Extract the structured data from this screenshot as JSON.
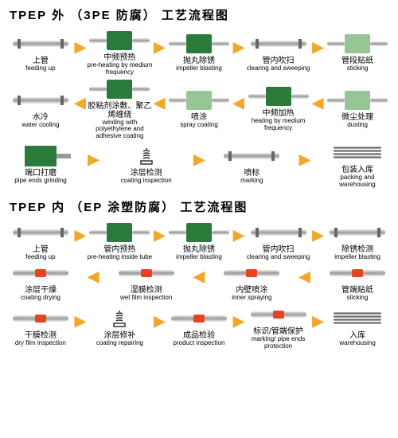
{
  "colors": {
    "arrow": "#f5a623",
    "machine_green": "#2a7a3a",
    "machine_light": "#6aad6a",
    "orange_band": "#e8431f",
    "pipe_grey": "#999"
  },
  "chart1": {
    "title": "TPEP 外 （3PE 防腐） 工艺流程图",
    "rows": [
      {
        "dir": "right",
        "steps": [
          {
            "zh": "上管",
            "en": "feeding up",
            "icon": "pipe"
          },
          {
            "zh": "中频预热",
            "en": "pre-heating by medium frequency",
            "icon": "machine"
          },
          {
            "zh": "抛丸除锈",
            "en": "impeller blasting",
            "icon": "machine"
          },
          {
            "zh": "管内吹扫",
            "en": "clearing and sweeping",
            "icon": "pipe"
          },
          {
            "zh": "管段贴纸",
            "en": "sticking",
            "icon": "machine-light"
          }
        ]
      },
      {
        "dir": "left",
        "steps": [
          {
            "zh": "水冷",
            "en": "water cooling",
            "icon": "pipe"
          },
          {
            "zh": "胶粘剂涂敷、聚乙烯缠绕",
            "en": "winding with polyethylene and adhesive coating",
            "icon": "machine"
          },
          {
            "zh": "喷涂",
            "en": "spray coating",
            "icon": "machine-light"
          },
          {
            "zh": "中频加热",
            "en": "heating by medium frequency",
            "icon": "machine"
          },
          {
            "zh": "微尘处理",
            "en": "dusting",
            "icon": "machine-light"
          }
        ]
      },
      {
        "dir": "right",
        "steps": [
          {
            "zh": "端口打磨",
            "en": "pipe ends grinding",
            "icon": "grinder"
          },
          {
            "zh": "涂层检测",
            "en": "coating inspection",
            "icon": "spring"
          },
          {
            "zh": "喷标",
            "en": "marking",
            "icon": "pipe"
          },
          {
            "zh": "包装入库",
            "en": "packing and warehousing",
            "icon": "stack"
          }
        ]
      }
    ]
  },
  "chart2": {
    "title": "TPEP 内 （EP 涂塑防腐） 工艺流程图",
    "rows": [
      {
        "dir": "right",
        "steps": [
          {
            "zh": "上管",
            "en": "feeding up",
            "icon": "pipe"
          },
          {
            "zh": "管内预热",
            "en": "pre-heating inside tube",
            "icon": "machine"
          },
          {
            "zh": "抛丸除锈",
            "en": "impeller blasting",
            "icon": "machine"
          },
          {
            "zh": "管内吹扫",
            "en": "clearing and sweeping",
            "icon": "pipe"
          },
          {
            "zh": "除锈检测",
            "en": "impeller blasting",
            "icon": "pipe"
          }
        ]
      },
      {
        "dir": "left",
        "steps": [
          {
            "zh": "涂层干燥",
            "en": "coating drying",
            "icon": "orange"
          },
          {
            "zh": "湿膜检测",
            "en": "wet film inspection",
            "icon": "orange"
          },
          {
            "zh": "内壁喷涂",
            "en": "inner spraying",
            "icon": "orange"
          },
          {
            "zh": "管端贴纸",
            "en": "sticking",
            "icon": "orange"
          }
        ]
      },
      {
        "dir": "right",
        "steps": [
          {
            "zh": "干膜检测",
            "en": "dry film inspection",
            "icon": "orange"
          },
          {
            "zh": "涂层修补",
            "en": "coating repairing",
            "icon": "spring"
          },
          {
            "zh": "成品检验",
            "en": "product inspection",
            "icon": "orange"
          },
          {
            "zh": "标识/管端保护",
            "en": "marking/ pipe ends protection",
            "icon": "orange"
          },
          {
            "zh": "入库",
            "en": "warehousing",
            "icon": "stack"
          }
        ]
      }
    ]
  }
}
